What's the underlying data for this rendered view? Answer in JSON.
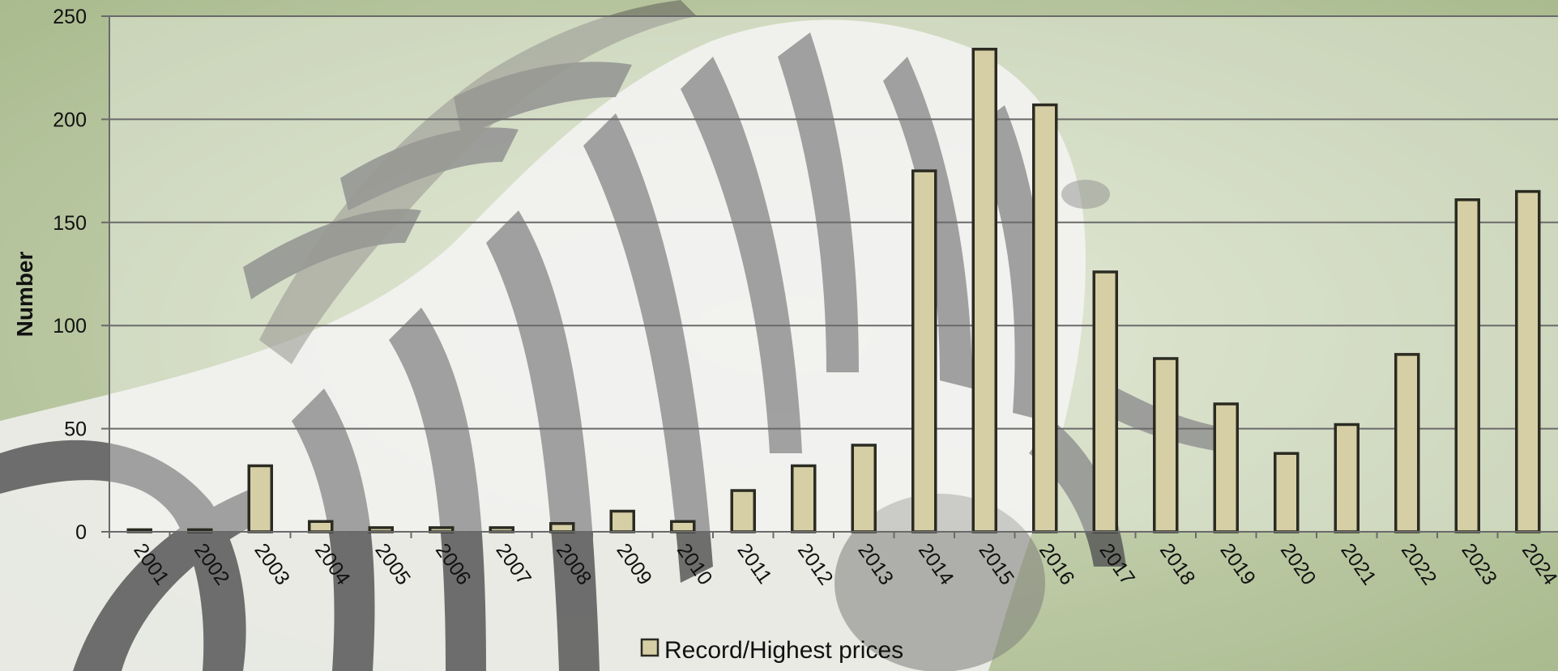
{
  "colors": {
    "bar_fill": "#d6cfa6",
    "bar_stroke": "#2b2b22",
    "gridline": "#6a6a6a",
    "plot_overlay": "#ffffff",
    "background_green": "#a9bd86"
  },
  "chart_data": {
    "type": "bar",
    "title": "",
    "xlabel": "",
    "ylabel": "Number",
    "ylim": [
      0,
      250
    ],
    "yticks": [
      0,
      50,
      100,
      150,
      200,
      250
    ],
    "grid": true,
    "legend_position": "bottom",
    "categories": [
      "2001",
      "2002",
      "2003",
      "2004",
      "2005",
      "2006",
      "2007",
      "2008",
      "2009",
      "2010",
      "2011",
      "2012",
      "2013",
      "2014",
      "2015",
      "2016",
      "2017",
      "2018",
      "2019",
      "2020",
      "2021",
      "2022",
      "2023",
      "2024"
    ],
    "series": [
      {
        "name": "Record/Highest prices",
        "values": [
          1,
          1,
          32,
          5,
          2,
          2,
          2,
          4,
          10,
          5,
          20,
          32,
          42,
          175,
          234,
          207,
          126,
          84,
          62,
          38,
          52,
          86,
          161,
          165
        ]
      }
    ]
  }
}
